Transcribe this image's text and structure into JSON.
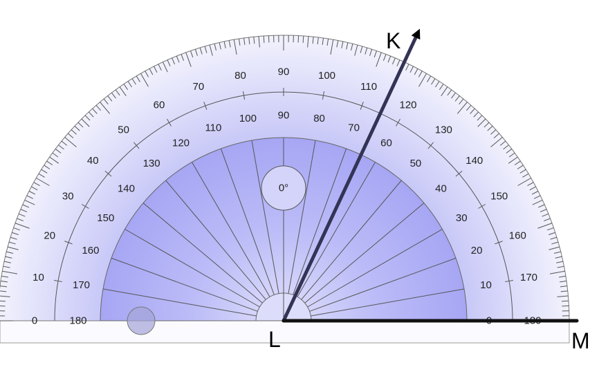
{
  "protractor": {
    "outer_scale_labels": [
      "0",
      "10",
      "20",
      "30",
      "40",
      "50",
      "60",
      "70",
      "80",
      "90",
      "100",
      "110",
      "120",
      "130",
      "140",
      "150",
      "160",
      "170",
      "180"
    ],
    "inner_scale_labels": [
      "180",
      "170",
      "160",
      "150",
      "140",
      "130",
      "120",
      "110",
      "100",
      "90",
      "80",
      "70",
      "60",
      "50",
      "40",
      "30",
      "20",
      "10",
      "0"
    ],
    "center_label": "0°",
    "colors": {
      "outer_band": "#ebebfc",
      "inner_fill": "#a9a9f6",
      "line": "#555566"
    }
  },
  "points": {
    "K": "K",
    "L": "L",
    "M": "M"
  },
  "rays": [
    {
      "from": "L",
      "to": "K",
      "angle_deg": 65,
      "arrow": true
    },
    {
      "from": "L",
      "to": "M",
      "angle_deg": 0,
      "arrow": false
    }
  ]
}
